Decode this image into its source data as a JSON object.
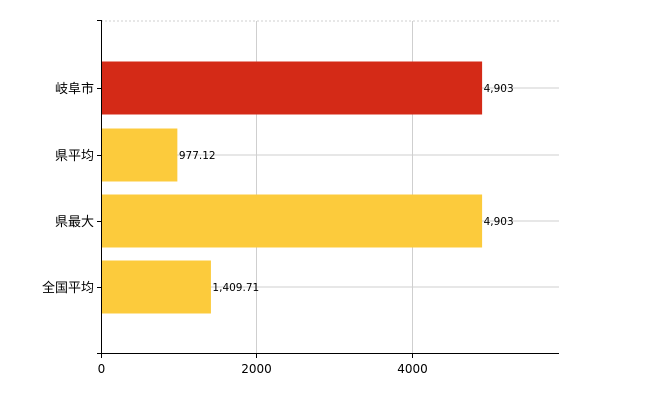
{
  "chart_data": {
    "type": "bar",
    "orientation": "horizontal",
    "categories": [
      "岐阜市",
      "県平均",
      "県最大",
      "全国平均"
    ],
    "values": [
      4903,
      977.12,
      4903,
      1409.71
    ],
    "value_labels": [
      "4,903",
      "977.12",
      "4,903",
      "1,409.71"
    ],
    "bar_colors": [
      "#d42a17",
      "#fccb3c",
      "#fccb3c",
      "#fccb3c"
    ],
    "highlight_color": "#d42a17",
    "base_color": "#fccb3c",
    "xlim": [
      0,
      5900
    ],
    "x_ticks": [
      0,
      2000,
      4000
    ],
    "x_tick_labels": [
      "0",
      "2000",
      "4000"
    ],
    "grid": true,
    "legend": "none"
  }
}
